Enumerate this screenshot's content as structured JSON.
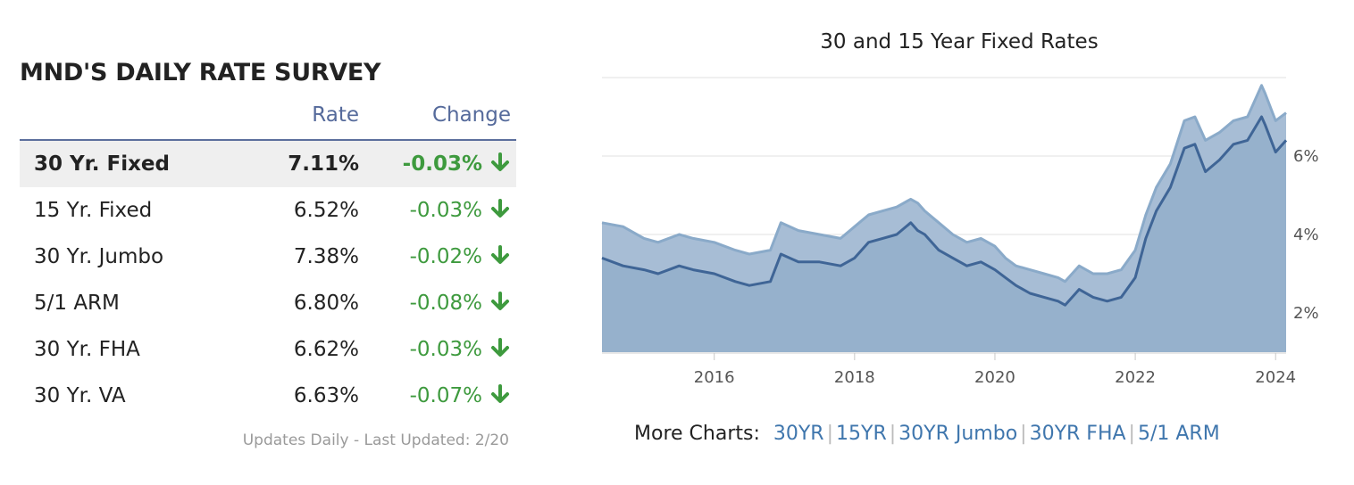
{
  "survey": {
    "title_prefix": "MND'S",
    "title_bold": "DAILY RATE SURVEY",
    "headers": {
      "rate": "Rate",
      "change": "Change"
    },
    "rows": [
      {
        "name": "30 Yr. Fixed",
        "rate": "7.11%",
        "change": "-0.03%"
      },
      {
        "name": "15 Yr. Fixed",
        "rate": "6.52%",
        "change": "-0.03%"
      },
      {
        "name": "30 Yr. Jumbo",
        "rate": "7.38%",
        "change": "-0.02%"
      },
      {
        "name": "5/1 ARM",
        "rate": "6.80%",
        "change": "-0.08%"
      },
      {
        "name": "30 Yr. FHA",
        "rate": "6.62%",
        "change": "-0.03%"
      },
      {
        "name": "30 Yr. VA",
        "rate": "6.63%",
        "change": "-0.07%"
      }
    ],
    "updated": "Updates Daily - Last Updated: 2/20",
    "colors": {
      "header": "#556a9b",
      "negative": "#3e9a3e",
      "highlight_row": "#efefef"
    }
  },
  "more_charts": {
    "label": "More Charts:",
    "links": [
      "30YR",
      "15YR",
      "30YR Jumbo",
      "30YR FHA",
      "5/1 ARM"
    ]
  },
  "chart_data": {
    "type": "area",
    "title": "30 and 15 Year Fixed Rates",
    "xlabel": "",
    "ylabel": "",
    "xlim": [
      2014.4,
      2024.15
    ],
    "ylim": [
      1.0,
      8.0
    ],
    "x_ticks": [
      2016,
      2018,
      2020,
      2022,
      2024
    ],
    "y_ticks": [
      2,
      4,
      6
    ],
    "y_tick_labels": [
      "2%",
      "4%",
      "6%"
    ],
    "y_axis_side": "right",
    "grid": "horizontal",
    "legend": "none",
    "series": [
      {
        "x": [
          2014.4,
          2014.7,
          2015.0,
          2015.2,
          2015.5,
          2015.7,
          2016.0,
          2016.3,
          2016.5,
          2016.8,
          2016.95,
          2017.2,
          2017.5,
          2017.8,
          2018.0,
          2018.2,
          2018.4,
          2018.6,
          2018.8,
          2018.9,
          2019.0,
          2019.2,
          2019.4,
          2019.6,
          2019.8,
          2020.0,
          2020.15,
          2020.3,
          2020.5,
          2020.7,
          2020.9,
          2021.0,
          2021.2,
          2021.4,
          2021.6,
          2021.8,
          2022.0,
          2022.15,
          2022.3,
          2022.5,
          2022.7,
          2022.85,
          2023.0,
          2023.2,
          2023.4,
          2023.6,
          2023.8,
          2023.85,
          2024.0,
          2024.15
        ],
        "values": [
          4.3,
          4.2,
          3.9,
          3.8,
          4.0,
          3.9,
          3.8,
          3.6,
          3.5,
          3.6,
          4.3,
          4.1,
          4.0,
          3.9,
          4.2,
          4.5,
          4.6,
          4.7,
          4.9,
          4.8,
          4.6,
          4.3,
          4.0,
          3.8,
          3.9,
          3.7,
          3.4,
          3.2,
          3.1,
          3.0,
          2.9,
          2.8,
          3.2,
          3.0,
          3.0,
          3.1,
          3.6,
          4.5,
          5.2,
          5.8,
          6.9,
          7.0,
          6.4,
          6.6,
          6.9,
          7.0,
          7.8,
          7.6,
          6.9,
          7.1
        ],
        "color": "#8aaac9"
      },
      {
        "x": [
          2014.4,
          2014.7,
          2015.0,
          2015.2,
          2015.5,
          2015.7,
          2016.0,
          2016.3,
          2016.5,
          2016.8,
          2016.95,
          2017.2,
          2017.5,
          2017.8,
          2018.0,
          2018.2,
          2018.4,
          2018.6,
          2018.8,
          2018.9,
          2019.0,
          2019.2,
          2019.4,
          2019.6,
          2019.8,
          2020.0,
          2020.15,
          2020.3,
          2020.5,
          2020.7,
          2020.9,
          2021.0,
          2021.2,
          2021.4,
          2021.6,
          2021.8,
          2022.0,
          2022.15,
          2022.3,
          2022.5,
          2022.7,
          2022.85,
          2023.0,
          2023.2,
          2023.4,
          2023.6,
          2023.8,
          2023.85,
          2024.0,
          2024.15
        ],
        "values": [
          3.4,
          3.2,
          3.1,
          3.0,
          3.2,
          3.1,
          3.0,
          2.8,
          2.7,
          2.8,
          3.5,
          3.3,
          3.3,
          3.2,
          3.4,
          3.8,
          3.9,
          4.0,
          4.3,
          4.1,
          4.0,
          3.6,
          3.4,
          3.2,
          3.3,
          3.1,
          2.9,
          2.7,
          2.5,
          2.4,
          2.3,
          2.2,
          2.6,
          2.4,
          2.3,
          2.4,
          2.9,
          3.9,
          4.6,
          5.2,
          6.2,
          6.3,
          5.6,
          5.9,
          6.3,
          6.4,
          7.0,
          6.8,
          6.1,
          6.4
        ],
        "color": "#3f6596"
      }
    ]
  }
}
